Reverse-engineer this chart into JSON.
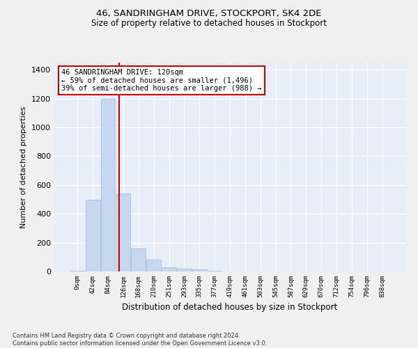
{
  "title_line1": "46, SANDRINGHAM DRIVE, STOCKPORT, SK4 2DE",
  "title_line2": "Size of property relative to detached houses in Stockport",
  "xlabel": "Distribution of detached houses by size in Stockport",
  "ylabel": "Number of detached properties",
  "bar_labels": [
    "0sqm",
    "42sqm",
    "84sqm",
    "126sqm",
    "168sqm",
    "210sqm",
    "251sqm",
    "293sqm",
    "335sqm",
    "377sqm",
    "419sqm",
    "461sqm",
    "503sqm",
    "545sqm",
    "587sqm",
    "629sqm",
    "670sqm",
    "712sqm",
    "754sqm",
    "796sqm",
    "838sqm"
  ],
  "bar_values": [
    5,
    500,
    1200,
    540,
    160,
    80,
    30,
    20,
    15,
    5,
    0,
    0,
    0,
    0,
    0,
    0,
    0,
    0,
    0,
    0,
    0
  ],
  "bar_color": "#c5d8f0",
  "bar_edge_color": "#a0b8d8",
  "vline_x": 2.72,
  "vline_color": "#cc0000",
  "annotation_text": "46 SANDRINGHAM DRIVE: 120sqm\n← 59% of detached houses are smaller (1,496)\n39% of semi-detached houses are larger (988) →",
  "annotation_box_color": "#ffffff",
  "annotation_box_edge": "#cc0000",
  "ylim": [
    0,
    1450
  ],
  "yticks": [
    0,
    200,
    400,
    600,
    800,
    1000,
    1200,
    1400
  ],
  "background_color": "#e8eef8",
  "grid_color": "#ffffff",
  "footer_line1": "Contains HM Land Registry data © Crown copyright and database right 2024.",
  "footer_line2": "Contains public sector information licensed under the Open Government Licence v3.0."
}
